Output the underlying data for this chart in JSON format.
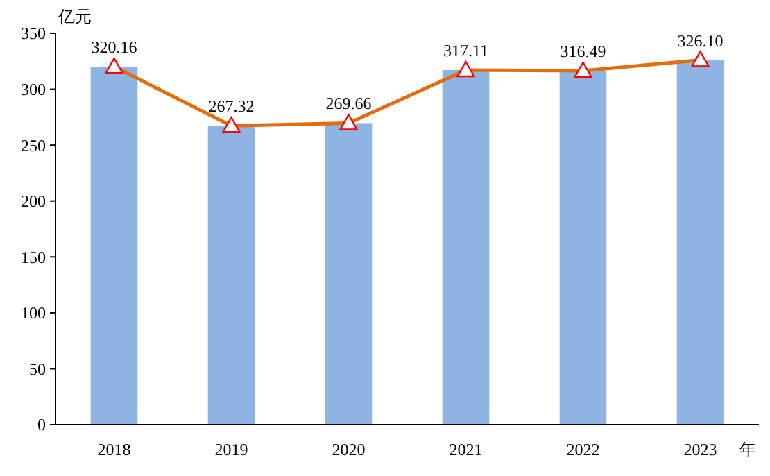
{
  "chart_data": {
    "type": "bar",
    "ylabel": "亿元",
    "xlabel": "年",
    "categories": [
      "2018",
      "2019",
      "2020",
      "2021",
      "2022",
      "2023"
    ],
    "series": [
      {
        "color": "#8db4e2",
        "values": [
          320.16,
          267.32,
          269.66,
          317.11,
          316.49,
          326.1
        ]
      },
      {
        "type": "line",
        "color": "#e46c0a",
        "values": [
          320.16,
          267.32,
          269.66,
          317.11,
          316.49,
          326.1
        ],
        "value_labels": [
          "320.16",
          "267.32",
          "269.66",
          "317.11",
          "316.49",
          "326.10"
        ]
      }
    ],
    "ylim": [
      0,
      350
    ],
    "yticks": [
      0,
      50,
      100,
      150,
      200,
      250,
      300,
      350
    ],
    "marker": "triangle",
    "grid": false
  }
}
